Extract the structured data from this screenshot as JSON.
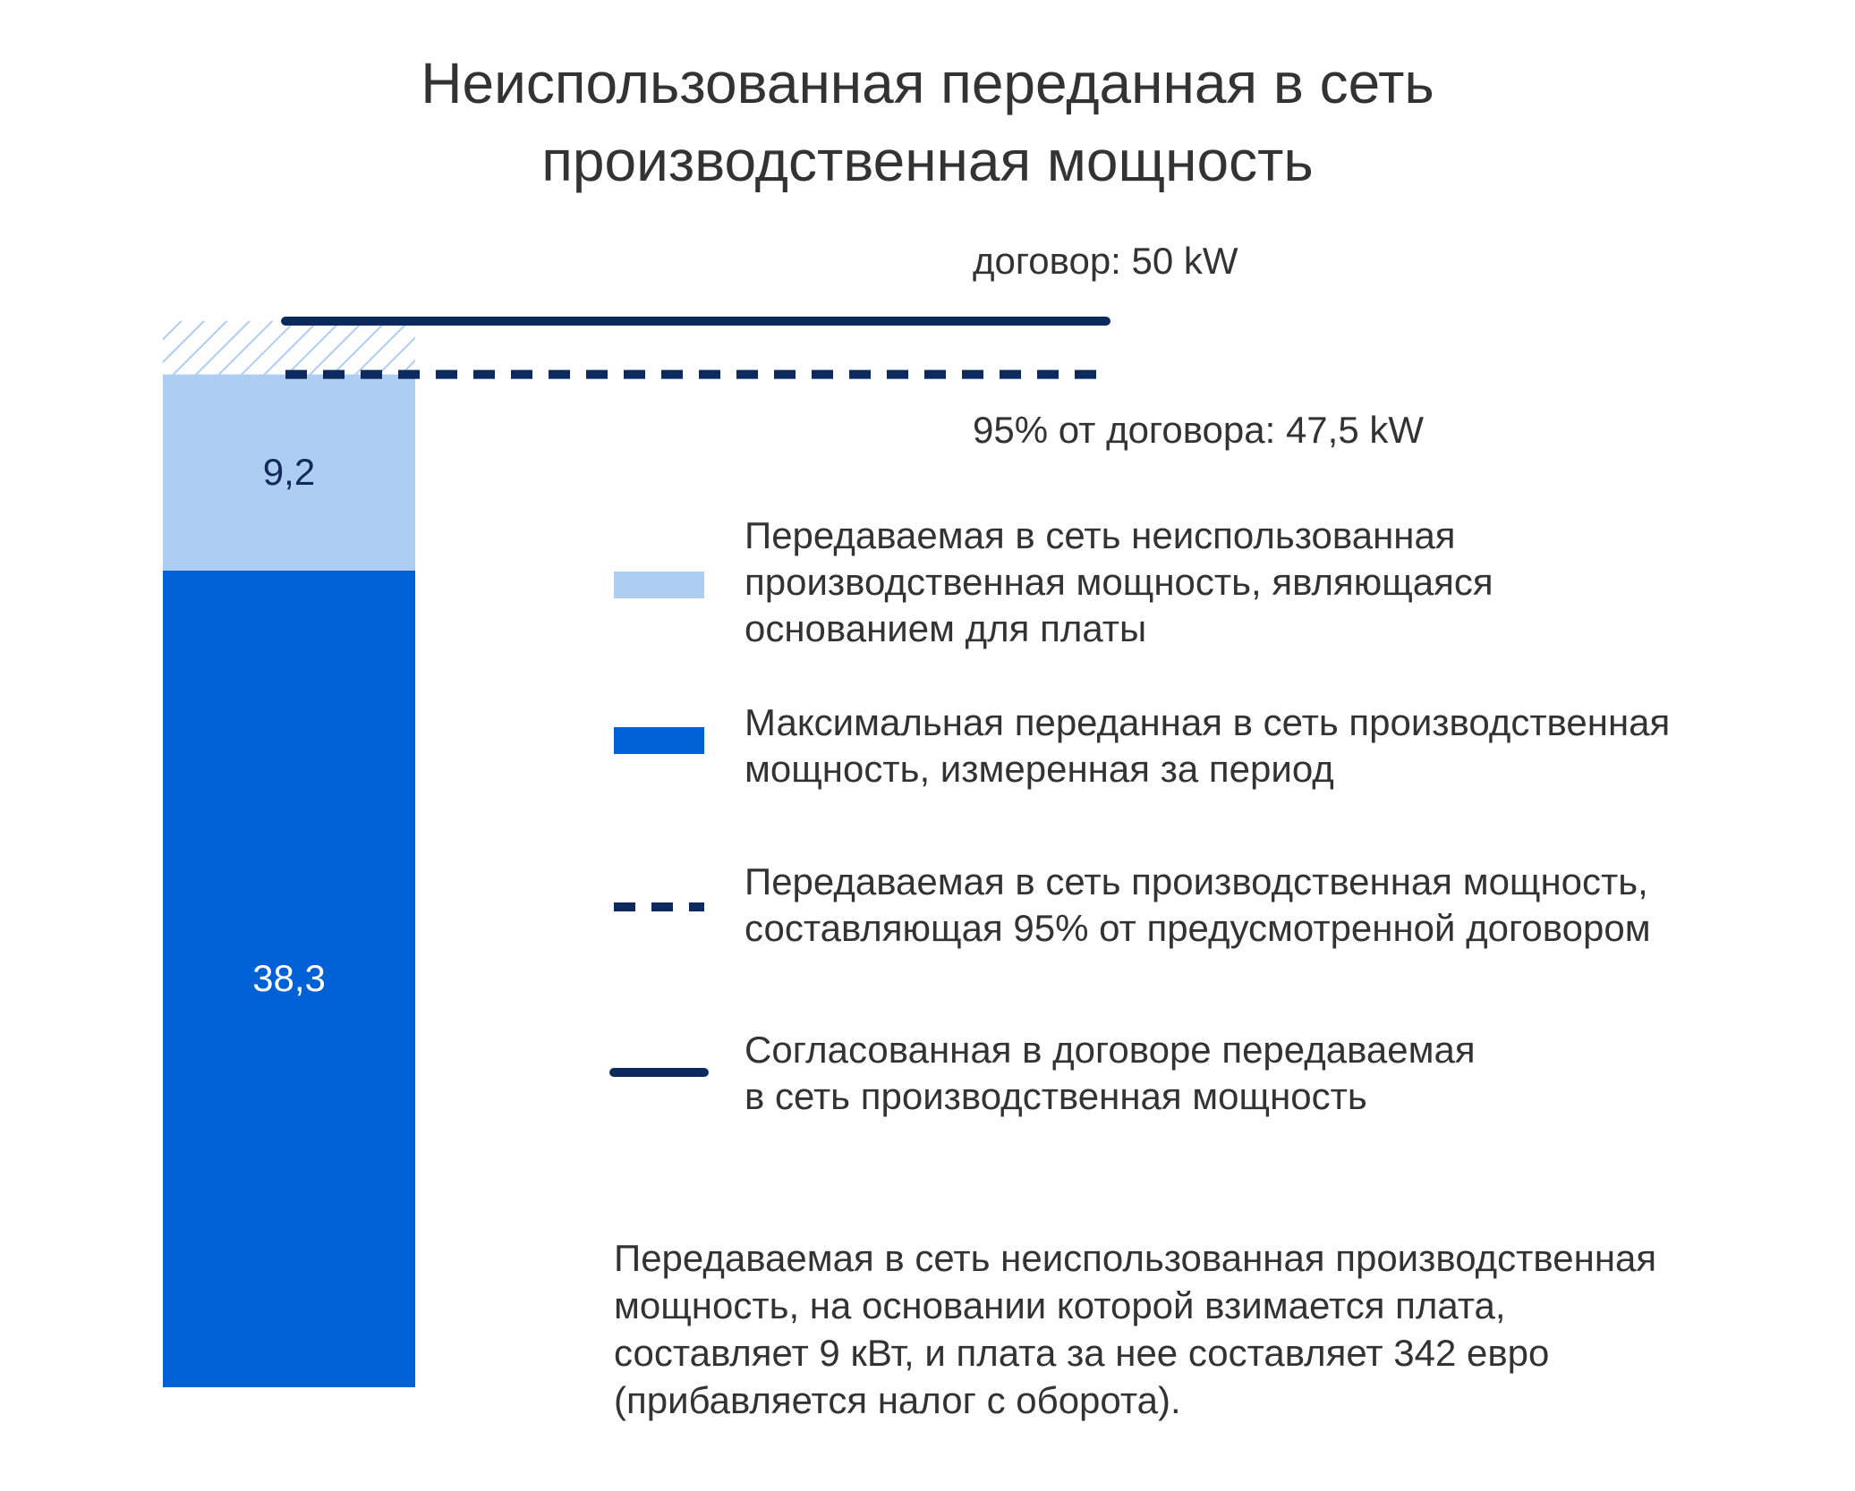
{
  "chart_data": {
    "type": "bar",
    "title": "Неиспользованная переданная в сеть\nпроизводственная мощность",
    "categories": [
      null
    ],
    "series": [
      {
        "name": "Максимальная переданная в сеть производственная\nмощность, измеренная за период",
        "color": "#0060d6",
        "label_color": "#ffffff",
        "values": [
          38.3
        ],
        "value_labels": [
          "38,3"
        ]
      },
      {
        "name": "Передаваемая в сеть неиспользованная\nпроизводственная мощность, являющаяся\nоснованием для платы",
        "color": "#aecdf3",
        "label_color": "#13295a",
        "values": [
          9.2
        ],
        "value_labels": [
          "9,2"
        ]
      }
    ],
    "reference_lines": [
      {
        "name": "Согласованная в договоре передаваемая\nв сеть производственная мощность",
        "value": 50,
        "label": "договор: 50 kW",
        "style": "solid",
        "color": "#0d2a5e"
      },
      {
        "name": "Передаваемая в сеть производственная мощность,\nсоставляющая 95% от предусмотренной договором",
        "value": 47.5,
        "label": "95% от договора: 47,5 kW",
        "style": "dashed",
        "color": "#0d2a5e"
      }
    ],
    "note": "Передаваемая в сеть неиспользованная производственная\nмощность, на основании которой взимается плата,\nсоставляет 9 кВт, и плата за нее составляет 342 евро\n(прибавляется налог с оборота)."
  }
}
